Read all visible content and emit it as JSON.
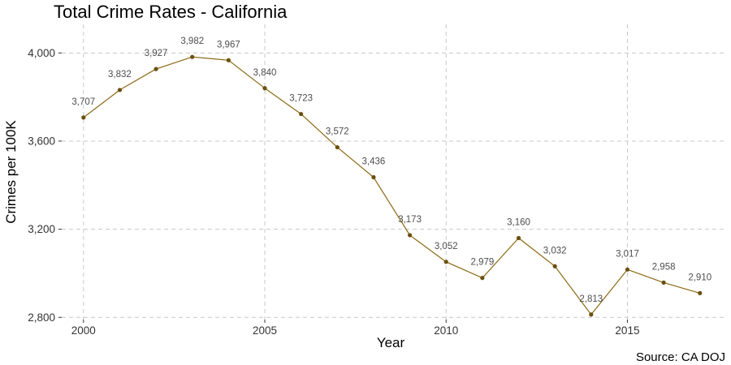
{
  "chart_data": {
    "type": "line",
    "title": "Total Crime Rates - California",
    "xlabel": "Year",
    "ylabel": "Crimes per 100K",
    "caption": "Source: CA DOJ",
    "x": [
      2000,
      2001,
      2002,
      2003,
      2004,
      2005,
      2006,
      2007,
      2008,
      2009,
      2010,
      2011,
      2012,
      2013,
      2014,
      2015,
      2016,
      2017
    ],
    "values": [
      3707,
      3832,
      3927,
      3982,
      3967,
      3840,
      3723,
      3572,
      3436,
      3173,
      3052,
      2979,
      3160,
      3032,
      2813,
      3017,
      2958,
      2910
    ],
    "data_labels": [
      "3,707",
      "3,832",
      "3,927",
      "3,982",
      "3,967",
      "3,840",
      "3,723",
      "3,572",
      "3,436",
      "3,173",
      "3,052",
      "2,979",
      "3,160",
      "3,032",
      "2,813",
      "3,017",
      "2,958",
      "2,910"
    ],
    "xticks": [
      2000,
      2005,
      2010,
      2015
    ],
    "xtick_labels": [
      "2000",
      "2005",
      "2010",
      "2015"
    ],
    "yticks": [
      2800,
      3200,
      3600,
      4000
    ],
    "ytick_labels": [
      "2,800",
      "3,200",
      "3,600",
      "4,000"
    ],
    "xlim": [
      1999.4,
      2017.7
    ],
    "ylim": [
      2790,
      4130
    ],
    "grid": true,
    "line_color": "#8b6914",
    "point_color": "#6b4f0e"
  }
}
